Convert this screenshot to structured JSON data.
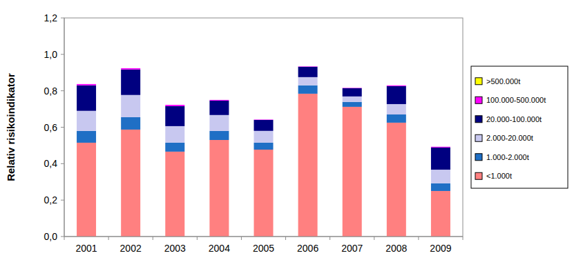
{
  "chart_data": {
    "type": "bar",
    "stacked": true,
    "grid": false,
    "legend": "right",
    "y_label": "Relativ risikoindikator",
    "categories": [
      "2001",
      "2002",
      "2003",
      "2004",
      "2005",
      "2006",
      "2007",
      "2008",
      "2009"
    ],
    "ylim": [
      0,
      1.2
    ],
    "yticks": [
      {
        "value": 0,
        "label": "0,0"
      },
      {
        "value": 0.2,
        "label": "0,2"
      },
      {
        "value": 0.4,
        "label": "0,4"
      },
      {
        "value": 0.6,
        "label": "0,6"
      },
      {
        "value": 0.8,
        "label": "0,8"
      },
      {
        "value": 1.0,
        "label": "1,0"
      },
      {
        "value": 1.2,
        "label": "1,2"
      }
    ],
    "series": [
      {
        "name": "<1.000t",
        "color": "#ff8080",
        "values": [
          0.515,
          0.587,
          0.466,
          0.53,
          0.477,
          0.784,
          0.712,
          0.625,
          0.25
        ]
      },
      {
        "name": "1.000-2.000t",
        "color": "#1f6fc5",
        "values": [
          0.065,
          0.068,
          0.049,
          0.05,
          0.038,
          0.046,
          0.027,
          0.045,
          0.042
        ]
      },
      {
        "name": "2.000-20.000t",
        "color": "#c8c8f0",
        "values": [
          0.11,
          0.122,
          0.091,
          0.087,
          0.065,
          0.045,
          0.03,
          0.057,
          0.075
        ]
      },
      {
        "name": "20.000-100.000t",
        "color": "#000080",
        "values": [
          0.14,
          0.14,
          0.11,
          0.079,
          0.06,
          0.057,
          0.045,
          0.099,
          0.122
        ]
      },
      {
        "name": "100.000-500.000t",
        "color": "#ff00ff",
        "values": [
          0.007,
          0.007,
          0.007,
          0.004,
          0.002,
          0.002,
          0.002,
          0.004,
          0.004
        ]
      },
      {
        "name": ">500.000t",
        "color": "#ffff00",
        "values": [
          0,
          0,
          0,
          0,
          0,
          0,
          0,
          0,
          0
        ]
      }
    ]
  }
}
